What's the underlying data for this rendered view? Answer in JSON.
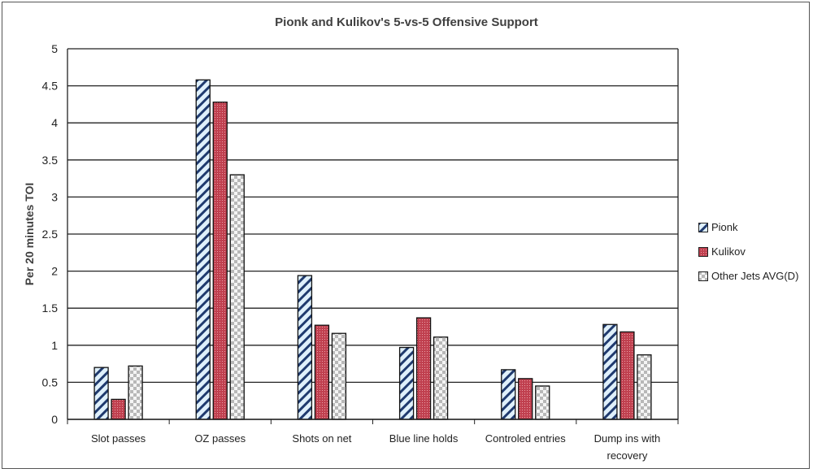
{
  "chart_data": {
    "type": "bar",
    "title": "Pionk and Kulikov's 5-vs-5 Offensive Support",
    "xlabel": "",
    "ylabel": "Per 20 minutes TOI",
    "ylim": [
      0,
      5
    ],
    "yticks": [
      "0",
      "0.5",
      "1",
      "1.5",
      "2",
      "2.5",
      "3",
      "3.5",
      "4",
      "4.5",
      "5"
    ],
    "grid": true,
    "legend_position": "right",
    "categories": [
      "Slot passes",
      "OZ passes",
      "Shots on net",
      "Blue line holds",
      "Controled entries",
      "Dump ins with recovery"
    ],
    "series": [
      {
        "name": "Pionk",
        "values": [
          0.7,
          4.58,
          1.94,
          0.97,
          0.67,
          1.28
        ]
      },
      {
        "name": "Kulikov",
        "values": [
          0.27,
          4.28,
          1.27,
          1.37,
          0.55,
          1.18
        ]
      },
      {
        "name": "Other Jets AVG(D)",
        "values": [
          0.72,
          3.3,
          1.16,
          1.11,
          0.45,
          0.87
        ]
      }
    ],
    "colors": {
      "pionk_line": "#1f3a6e",
      "kulikov": "#c0404f",
      "other": "#c8c8c8"
    }
  }
}
